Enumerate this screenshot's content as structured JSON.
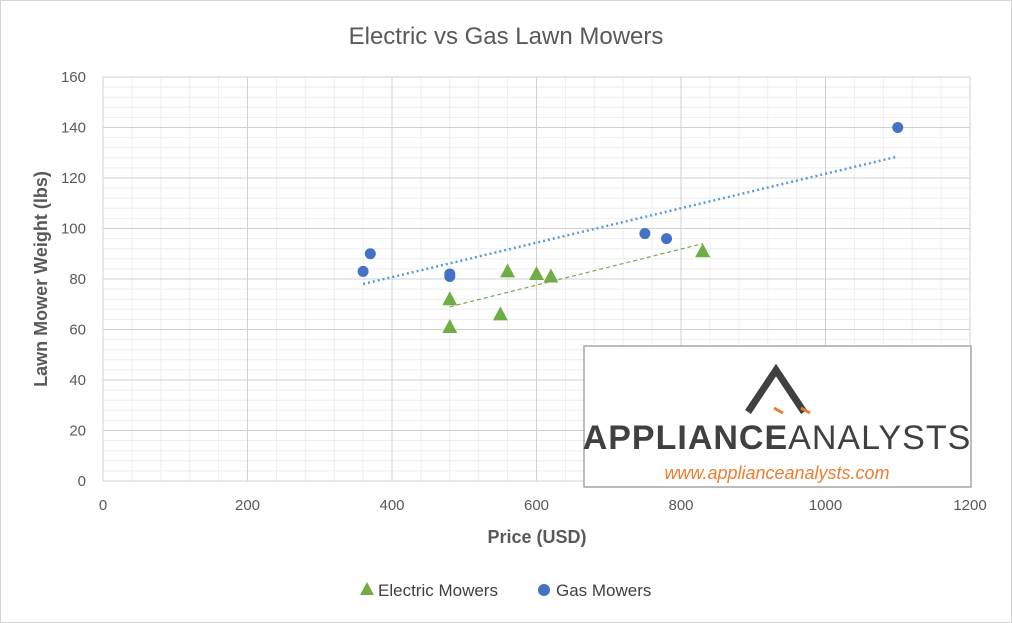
{
  "colors": {
    "electric": "#70ad47",
    "gas": "#4472c4",
    "gas_trend": "#5b9bd5",
    "electric_trend": "#70ad47",
    "logo_dark": "#404040",
    "logo_accent": "#ed7d31",
    "url": "#ed7d31"
  },
  "watermark": {
    "brand_bold": "APPLIANCE",
    "brand_light": "ANALYSTS",
    "url": "www.applianceanalysts.com",
    "logo_icon": "mountain-logo-icon"
  },
  "chart_data": {
    "type": "scatter",
    "title": "Electric vs Gas Lawn Mowers",
    "xlabel": "Price (USD)",
    "ylabel": "Lawn Mower Weight (lbs)",
    "xlim": [
      0,
      1200
    ],
    "ylim": [
      0,
      160
    ],
    "xticks": [
      0,
      200,
      400,
      600,
      800,
      1000,
      1200
    ],
    "yticks": [
      0,
      20,
      40,
      60,
      80,
      100,
      120,
      140,
      160
    ],
    "grid": "major and minor",
    "legend_position": "bottom",
    "series": [
      {
        "name": "Electric Mowers",
        "marker": "triangle",
        "points": [
          {
            "x": 480,
            "y": 72
          },
          {
            "x": 480,
            "y": 61
          },
          {
            "x": 550,
            "y": 66
          },
          {
            "x": 560,
            "y": 83
          },
          {
            "x": 600,
            "y": 82
          },
          {
            "x": 620,
            "y": 81
          },
          {
            "x": 830,
            "y": 91
          }
        ],
        "trendline": {
          "style": "dashed",
          "from": {
            "x": 480,
            "y": 69
          },
          "to": {
            "x": 830,
            "y": 94
          }
        }
      },
      {
        "name": "Gas Mowers",
        "marker": "circle",
        "points": [
          {
            "x": 360,
            "y": 83
          },
          {
            "x": 370,
            "y": 90
          },
          {
            "x": 480,
            "y": 82
          },
          {
            "x": 480,
            "y": 81
          },
          {
            "x": 750,
            "y": 98
          },
          {
            "x": 780,
            "y": 96
          },
          {
            "x": 1100,
            "y": 140
          }
        ],
        "trendline": {
          "style": "dotted",
          "from": {
            "x": 360,
            "y": 78
          },
          "to": {
            "x": 1100,
            "y": 128.5
          }
        }
      }
    ]
  }
}
